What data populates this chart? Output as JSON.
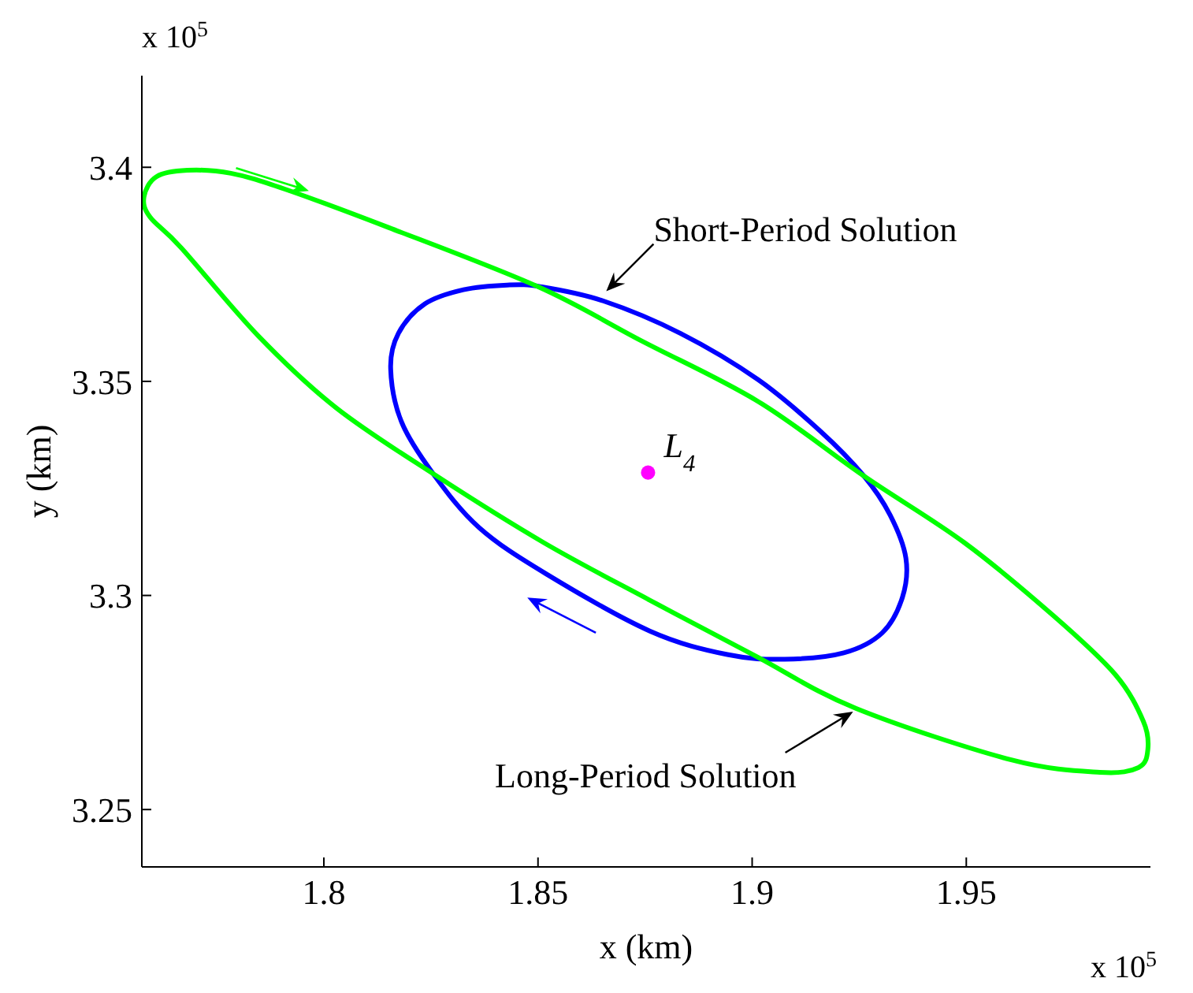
{
  "chart_data": {
    "type": "scatter",
    "xlabel": "x (km)",
    "ylabel": "y (km)",
    "xlim": [
      1.7575,
      1.993
    ],
    "ylim": [
      3.2366,
      3.4214
    ],
    "xticks": [
      1.8,
      1.85,
      1.9,
      1.95
    ],
    "yticks": [
      3.25,
      3.3,
      3.35,
      3.4
    ],
    "grid": false,
    "legend": false,
    "series": [
      {
        "name": "L$_{4}$",
        "color": "#ff00ff",
        "marker": "circle",
        "x": [
          1.8757
        ],
        "values": [
          3.3287
        ]
      }
    ],
    "annotations": [
      "Short-Period Solution",
      "Long-Period Solution",
      "x 10$^{5}$",
      "x 10$^{5}$"
    ]
  }
}
